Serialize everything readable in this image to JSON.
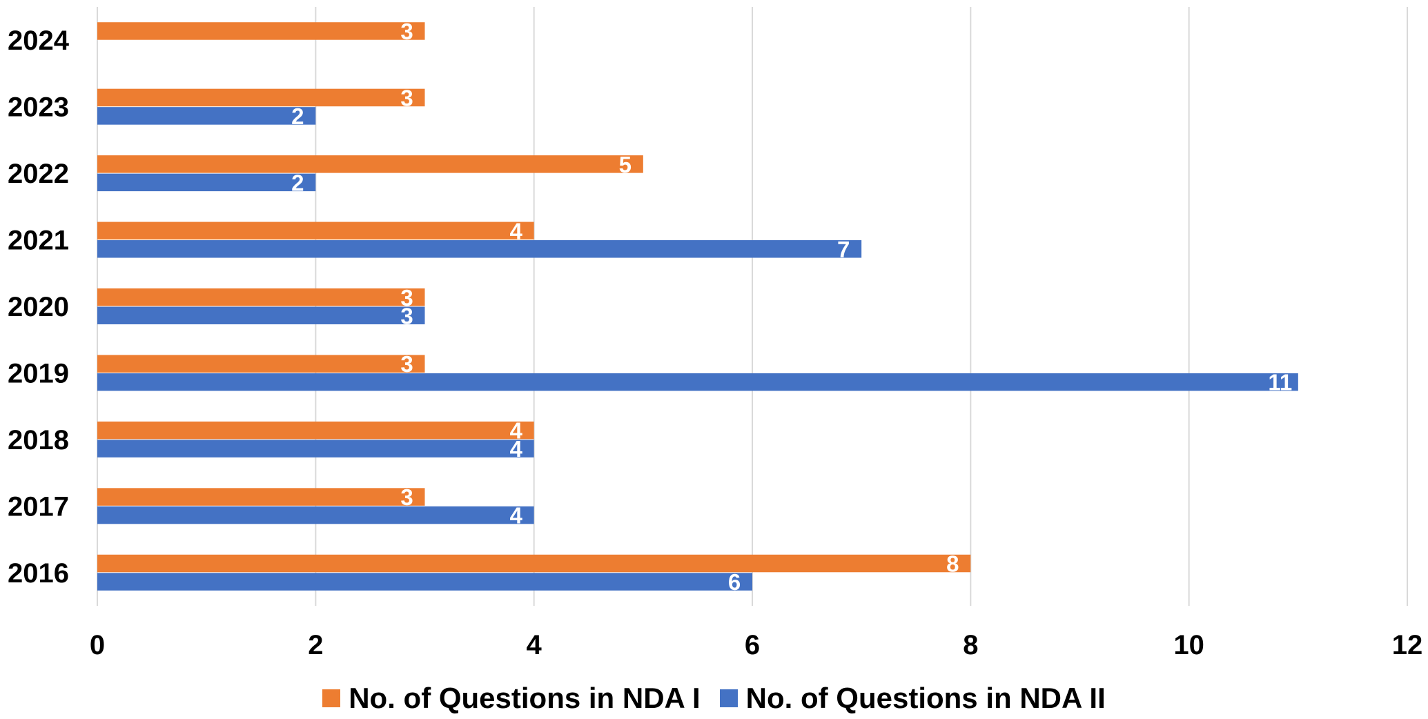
{
  "chart_data": {
    "type": "bar",
    "orientation": "horizontal",
    "categories": [
      "2016",
      "2017",
      "2018",
      "2019",
      "2020",
      "2021",
      "2022",
      "2023",
      "2024"
    ],
    "series": [
      {
        "name": "No. of Questions in NDA I",
        "color": "#ED7D31",
        "values": [
          8,
          3,
          4,
          3,
          3,
          4,
          5,
          3,
          3
        ]
      },
      {
        "name": "No. of Questions in NDA II",
        "color": "#4472C4",
        "values": [
          6,
          4,
          4,
          11,
          3,
          7,
          2,
          2,
          null
        ]
      }
    ],
    "xlim": [
      0,
      12
    ],
    "xticks": [
      0,
      2,
      4,
      6,
      8,
      10,
      12
    ],
    "grid": "vertical",
    "legend_position": "bottom",
    "data_labels": true
  }
}
